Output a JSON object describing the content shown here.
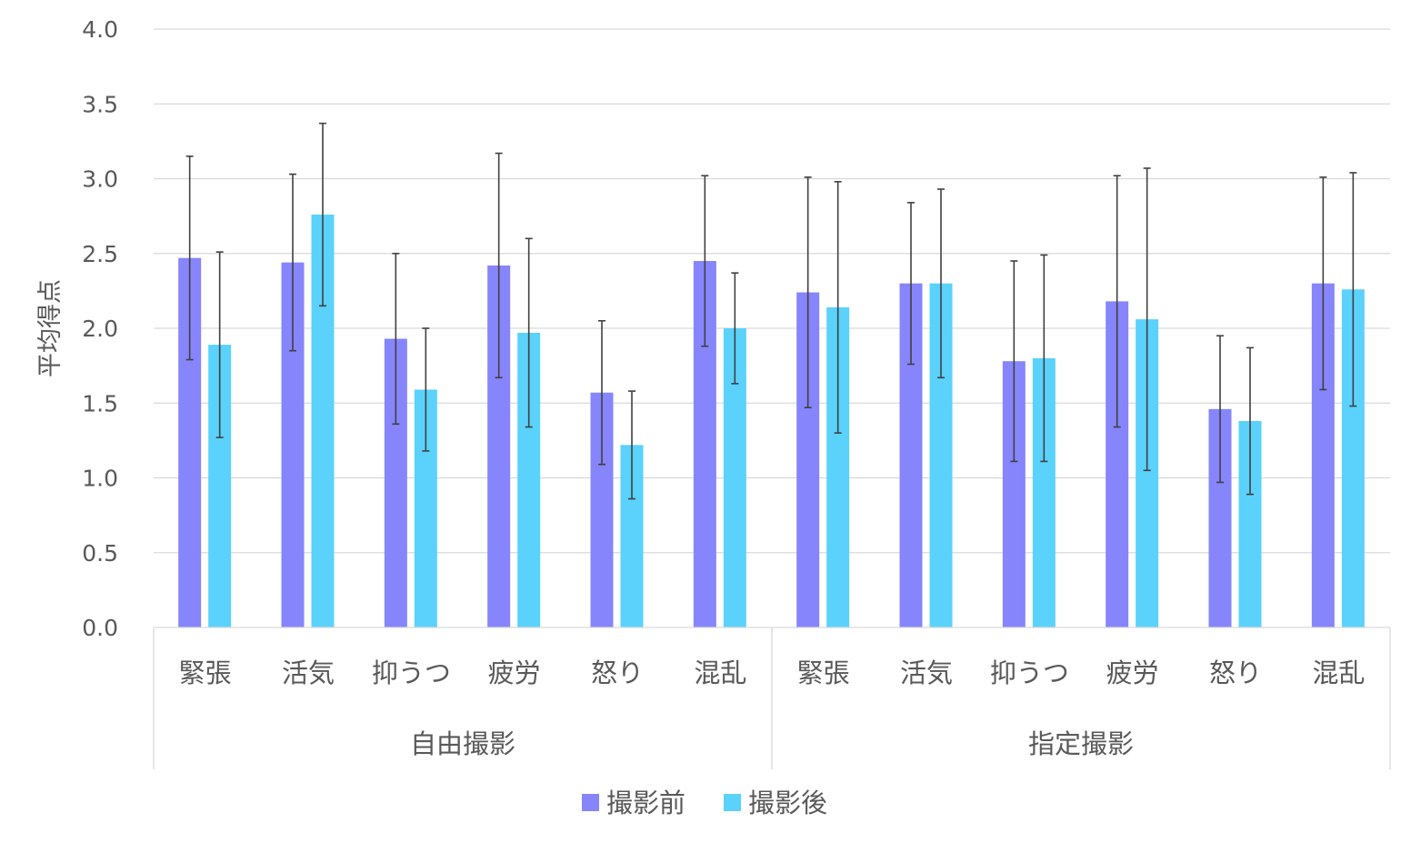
{
  "chart_data": {
    "type": "bar",
    "title": "",
    "xlabel": "",
    "ylabel": "平均得点",
    "ylim": [
      0,
      4
    ],
    "yticks": [
      0,
      0.5,
      1,
      1.5,
      2,
      2.5,
      3,
      3.5,
      4
    ],
    "ytick_labels": [
      "0.0",
      "0.5",
      "1.0",
      "1.5",
      "2.0",
      "2.5",
      "3.0",
      "3.5",
      "4.0"
    ],
    "grid": true,
    "legend_position": "bottom-center",
    "groups": [
      {
        "label": "自由撮影",
        "categories": [
          "緊張",
          "活気",
          "抑うつ",
          "疲労",
          "怒り",
          "混乱"
        ]
      },
      {
        "label": "指定撮影",
        "categories": [
          "緊張",
          "活気",
          "抑うつ",
          "疲労",
          "怒り",
          "混乱"
        ]
      }
    ],
    "categories": [
      "緊張",
      "活気",
      "抑うつ",
      "疲労",
      "怒り",
      "混乱",
      "緊張",
      "活気",
      "抑うつ",
      "疲労",
      "怒り",
      "混乱"
    ],
    "series": [
      {
        "name": "撮影前",
        "color": "#8685fb",
        "values": [
          2.47,
          2.44,
          1.93,
          2.42,
          1.57,
          2.45,
          2.24,
          2.3,
          1.78,
          2.18,
          1.46,
          2.3
        ],
        "error": [
          0.68,
          0.59,
          0.57,
          0.75,
          0.48,
          0.57,
          0.77,
          0.54,
          0.67,
          0.84,
          0.49,
          0.71
        ]
      },
      {
        "name": "撮影後",
        "color": "#5ad2fb",
        "values": [
          1.89,
          2.76,
          1.59,
          1.97,
          1.22,
          2.0,
          2.14,
          2.3,
          1.8,
          2.06,
          1.38,
          2.26
        ],
        "error": [
          0.62,
          0.61,
          0.41,
          0.63,
          0.36,
          0.37,
          0.84,
          0.63,
          0.69,
          1.01,
          0.49,
          0.78
        ]
      }
    ]
  }
}
